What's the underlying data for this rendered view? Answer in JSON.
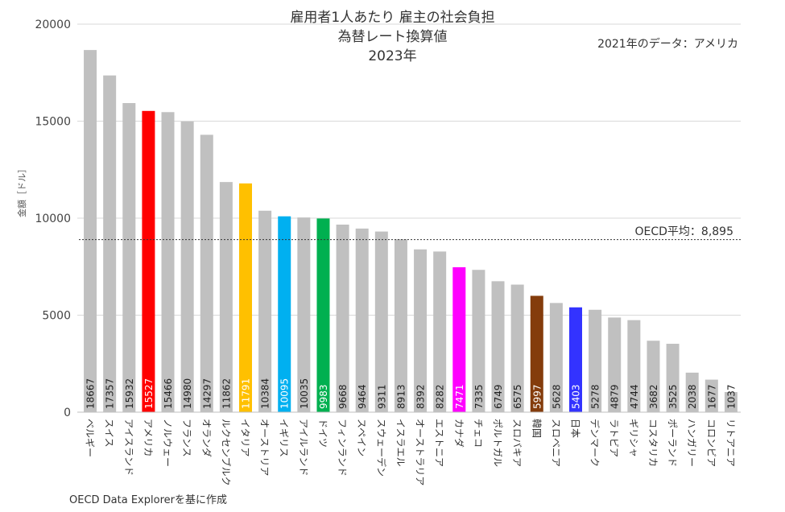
{
  "chart_data": {
    "type": "bar",
    "title_lines": [
      "雇用者1人あたり 雇主の社会負担",
      "為替レート換算値",
      "2023年"
    ],
    "note": "2021年のデータ：アメリカ",
    "ylabel": "金額［ドル］",
    "source": "OECD Data Explorerを基に作成",
    "average": {
      "label": "OECD平均：8,895",
      "value": 8895
    },
    "ylim": [
      0,
      20000
    ],
    "yticks": [
      "0",
      "5000",
      "10000",
      "15000",
      "20000"
    ],
    "ytick_values": [
      0,
      5000,
      10000,
      15000,
      20000
    ],
    "grid": true,
    "default_color": "#c0c0c0",
    "categories": [
      "ベルギー",
      "スイス",
      "アイスランド",
      "アメリカ",
      "ノルウェー",
      "フランス",
      "オランダ",
      "ルクセンブルク",
      "イタリア",
      "オーストリア",
      "イギリス",
      "アイルランド",
      "ドイツ",
      "フィンランド",
      "スペイン",
      "スウェーデン",
      "イスラエル",
      "オーストラリア",
      "エストニア",
      "カナダ",
      "チェコ",
      "ポルトガル",
      "スロバキア",
      "韓国",
      "スロベニア",
      "日本",
      "デンマーク",
      "ラトビア",
      "ギリシャ",
      "コスタリカ",
      "ポーランド",
      "ハンガリー",
      "コロンビア",
      "リトアニア"
    ],
    "values": [
      18667,
      17357,
      15932,
      15527,
      15466,
      14980,
      14297,
      11862,
      11791,
      10384,
      10095,
      10035,
      9983,
      9668,
      9464,
      9311,
      8913,
      8392,
      8282,
      7471,
      7335,
      6749,
      6575,
      5997,
      5628,
      5403,
      5278,
      4879,
      4744,
      3682,
      3525,
      2038,
      1677,
      1037
    ],
    "highlights": {
      "アメリカ": "#ff0000",
      "イタリア": "#ffc000",
      "イギリス": "#00b0f0",
      "ドイツ": "#00b050",
      "カナダ": "#ff00ff",
      "韓国": "#843c0c",
      "日本": "#3333ff"
    }
  }
}
